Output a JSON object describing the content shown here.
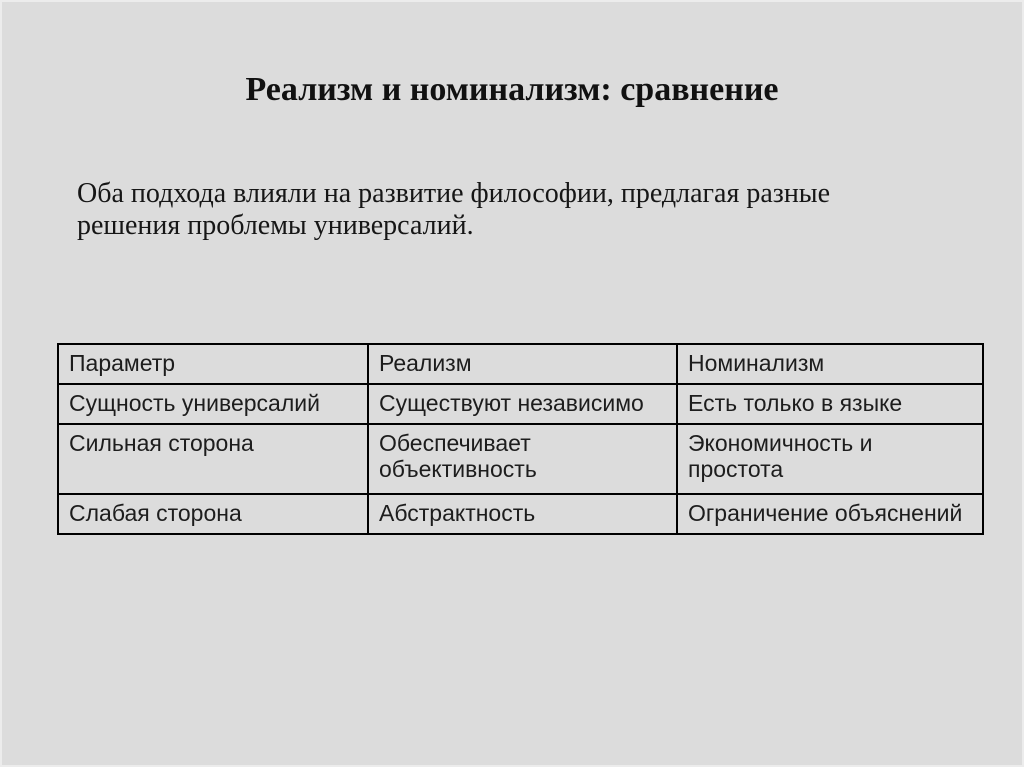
{
  "slide": {
    "title": "Реализм и номинализм: сравнение",
    "intro": "Оба подхода влияли на развитие философии, предлагая разные решения проблемы универсалий.",
    "table": {
      "headers": [
        "Параметр",
        "Реализм",
        "Номинализм"
      ],
      "rows": [
        [
          "Сущность универсалий",
          "Существуют независимо",
          "Есть только в языке"
        ],
        [
          "Сильная сторона",
          "Обеспечивает объективность",
          "Экономичность и простота"
        ],
        [
          "Слабая сторона",
          "Абстрактность",
          "Ограничение объяснений"
        ]
      ]
    },
    "colors": {
      "background": "#dcdcdc",
      "text": "#1a1a1a",
      "table_border": "#000000"
    }
  }
}
